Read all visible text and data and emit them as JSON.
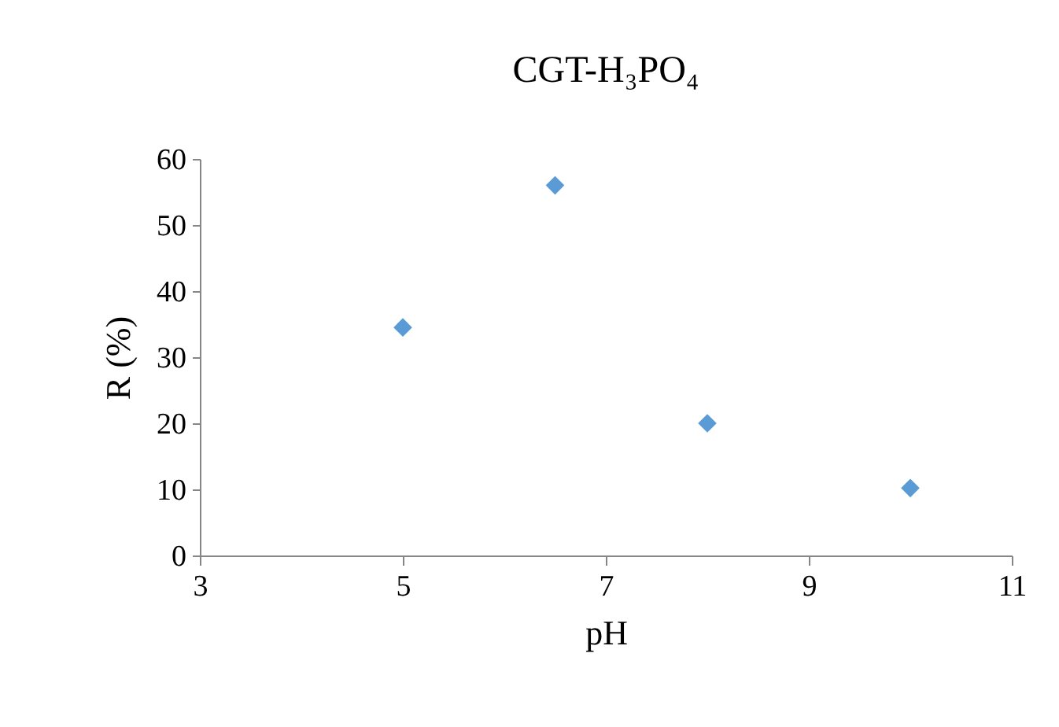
{
  "chart_data": {
    "type": "scatter",
    "title": "CGT-H₃PO₄",
    "xlabel": "pH",
    "ylabel": "R (%)",
    "x": [
      5,
      6.5,
      8,
      10
    ],
    "series": [
      {
        "color": "#5b9bd5",
        "values": [
          34.5,
          56,
          20,
          10.2
        ]
      }
    ],
    "xlim": [
      3,
      11
    ],
    "xticks": [
      3,
      5,
      7,
      9,
      11
    ],
    "ylim": [
      0,
      60
    ],
    "yticks": [
      0,
      10,
      20,
      30,
      40,
      50,
      60
    ],
    "grid": false,
    "marker": "diamond"
  }
}
